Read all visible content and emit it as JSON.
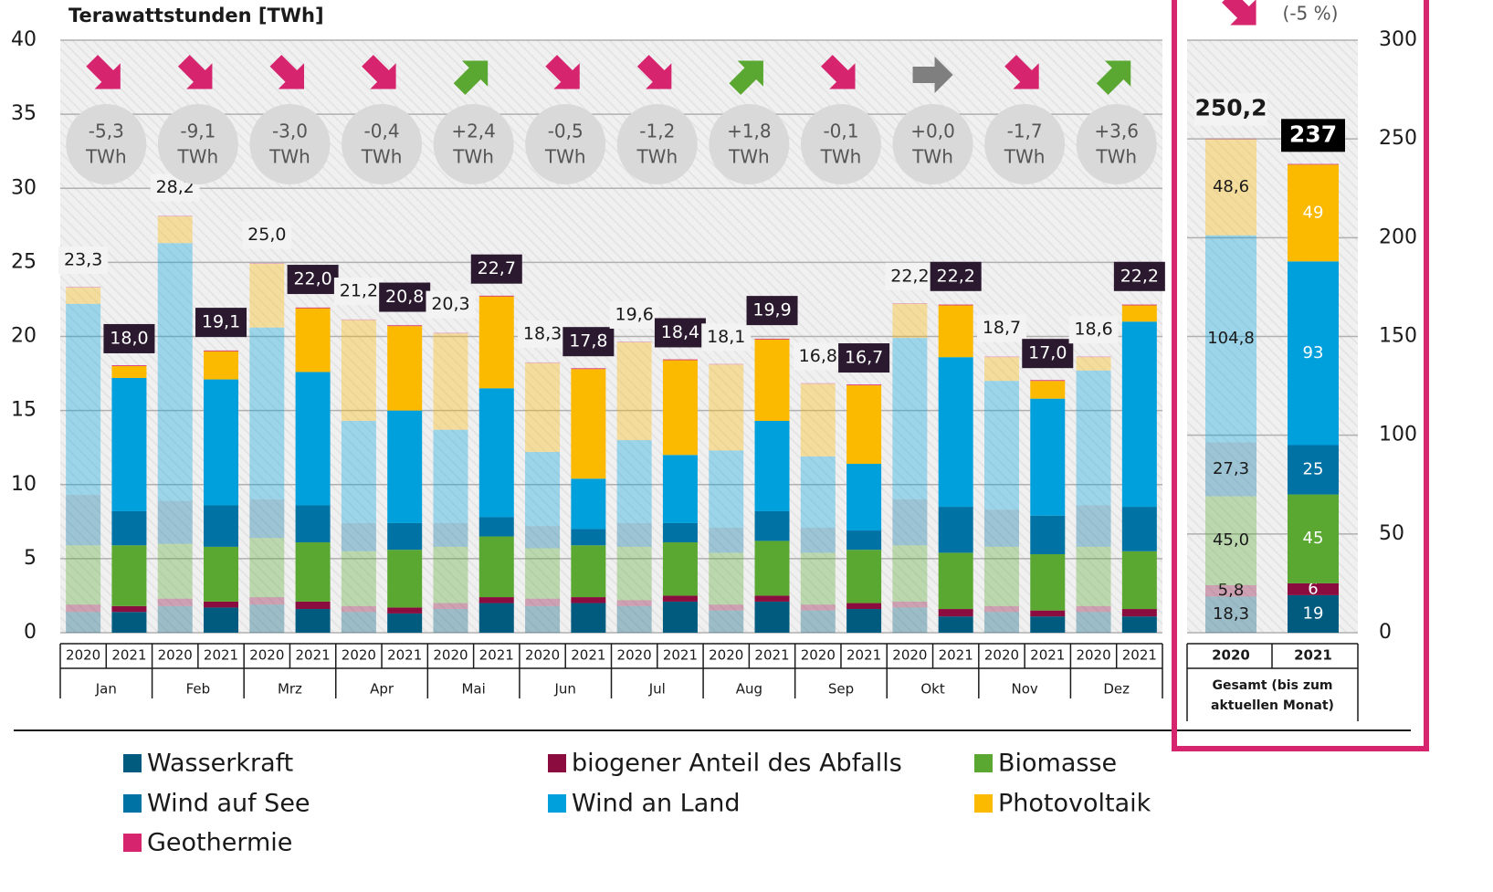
{
  "chart_data": {
    "type": "bar",
    "stacked": true,
    "y_label": "Terawattstunden [TWh]",
    "months": [
      "Jan",
      "Feb",
      "Mrz",
      "Apr",
      "Mai",
      "Jun",
      "Jul",
      "Aug",
      "Sep",
      "Okt",
      "Nov",
      "Dez"
    ],
    "years": [
      "2020",
      "2021"
    ],
    "series": [
      {
        "name": "Wasserkraft",
        "color": "#005b7f",
        "values": [
          1.4,
          1.4,
          1.8,
          1.7,
          1.9,
          1.6,
          1.4,
          1.3,
          1.6,
          2.0,
          1.8,
          2.0,
          1.8,
          2.1,
          1.5,
          2.1,
          1.5,
          1.6,
          1.7,
          1.1,
          1.4,
          1.1,
          1.4,
          1.1
        ],
        "total_values": [
          18.3,
          19
        ],
        "total_value_labels": [
          "18,3",
          "19"
        ]
      },
      {
        "name": "biogener Anteil des Abfalls",
        "color": "#8b0d3f",
        "values": [
          0.5,
          0.4,
          0.5,
          0.4,
          0.5,
          0.5,
          0.4,
          0.4,
          0.4,
          0.4,
          0.5,
          0.4,
          0.4,
          0.4,
          0.4,
          0.4,
          0.4,
          0.4,
          0.4,
          0.5,
          0.4,
          0.4,
          0.4,
          0.5
        ],
        "total_values": [
          5.8,
          6
        ],
        "total_value_labels": [
          "5,8",
          "6"
        ]
      },
      {
        "name": "Biomasse",
        "color": "#5aa832",
        "values": [
          4.0,
          4.1,
          3.7,
          3.7,
          4.0,
          4.0,
          3.7,
          3.9,
          3.8,
          4.1,
          3.4,
          3.5,
          3.6,
          3.6,
          3.5,
          3.7,
          3.5,
          3.6,
          3.8,
          3.8,
          4.0,
          3.8,
          4.0,
          3.9
        ],
        "total_values": [
          45.0,
          45
        ],
        "total_value_labels": [
          "45,0",
          "45"
        ]
      },
      {
        "name": "Wind auf See",
        "color": "#0072a3",
        "values": [
          3.4,
          2.3,
          2.9,
          2.8,
          2.6,
          2.5,
          1.9,
          1.8,
          1.6,
          1.3,
          1.5,
          1.1,
          1.6,
          1.3,
          1.7,
          2.0,
          1.7,
          1.3,
          3.1,
          3.1,
          2.5,
          2.6,
          2.8,
          3.0
        ],
        "total_values": [
          27.3,
          25
        ],
        "total_value_labels": [
          "27,3",
          "25"
        ]
      },
      {
        "name": "Wind an Land",
        "color": "#00a0dc",
        "values": [
          12.9,
          9.0,
          17.4,
          8.5,
          11.6,
          9.0,
          6.9,
          7.6,
          6.3,
          8.7,
          5.0,
          3.4,
          5.6,
          4.6,
          5.2,
          6.1,
          4.8,
          4.5,
          10.9,
          10.1,
          8.7,
          7.9,
          9.1,
          12.5
        ],
        "total_values": [
          104.8,
          93
        ],
        "total_value_labels": [
          "104,8",
          "93"
        ]
      },
      {
        "name": "Photovoltaik",
        "color": "#fbb900",
        "values": [
          1.1,
          0.8,
          1.8,
          1.9,
          4.3,
          4.3,
          6.8,
          5.7,
          6.5,
          6.2,
          6.0,
          7.4,
          6.6,
          6.4,
          5.8,
          5.5,
          4.9,
          5.3,
          2.3,
          3.5,
          1.6,
          1.2,
          0.9,
          1.1
        ],
        "total_values": [
          48.6,
          49
        ],
        "total_value_labels": [
          "48,6",
          "49"
        ]
      },
      {
        "name": "Geothermie",
        "color": "#d6246e",
        "values": [
          0.05,
          0.05,
          0.05,
          0.05,
          0.05,
          0.05,
          0.05,
          0.05,
          0.05,
          0.05,
          0.05,
          0.05,
          0.05,
          0.05,
          0.05,
          0.05,
          0.05,
          0.05,
          0.05,
          0.05,
          0.05,
          0.05,
          0.05,
          0.05
        ],
        "total_values": [
          0.4,
          0.3
        ],
        "total_value_labels": [
          null,
          null
        ]
      }
    ],
    "totals": [
      23.3,
      18.0,
      28.2,
      19.1,
      25.0,
      22.0,
      21.2,
      20.8,
      20.3,
      22.7,
      18.3,
      17.8,
      19.6,
      18.4,
      18.1,
      19.9,
      16.8,
      16.7,
      22.2,
      22.2,
      18.7,
      17.0,
      18.6,
      22.2
    ],
    "total_labels": [
      "23,3",
      "18,0",
      "28,2",
      "19,1",
      "25,0",
      "22,0",
      "21,2",
      "20,8",
      "20,3",
      "22,7",
      "18,3",
      "17,8",
      "19,6",
      "18,4",
      "18,1",
      "19,9",
      "16,8",
      "16,7",
      "22,2",
      "22,2",
      "18,7",
      "17,0",
      "18,6",
      "22,2"
    ],
    "changes": [
      -5.3,
      -9.1,
      -3.0,
      -0.4,
      2.4,
      -0.5,
      -1.2,
      1.8,
      -0.1,
      0.0,
      -1.7,
      3.6
    ],
    "change_labels": [
      "-5,3",
      "-9,1",
      "-3,0",
      "-0,4",
      "+2,4",
      "-0,5",
      "-1,2",
      "+1,8",
      "-0,1",
      "+0,0",
      "-1,7",
      "+3,6"
    ],
    "change_unit": "TWh",
    "ylim": [
      0,
      40
    ],
    "yticks": [
      0,
      5,
      10,
      15,
      20,
      25,
      30,
      35,
      40
    ],
    "y2lim": [
      0,
      300
    ],
    "y2ticks": [
      0,
      50,
      100,
      150,
      200,
      250,
      300
    ],
    "total_category": "Gesamt (bis zum aktuellen Monat)",
    "total_sums": [
      250.2,
      237
    ],
    "total_sum_labels": [
      "250,2",
      "237"
    ],
    "total_change_label": "(-5 %)",
    "grid": true
  }
}
